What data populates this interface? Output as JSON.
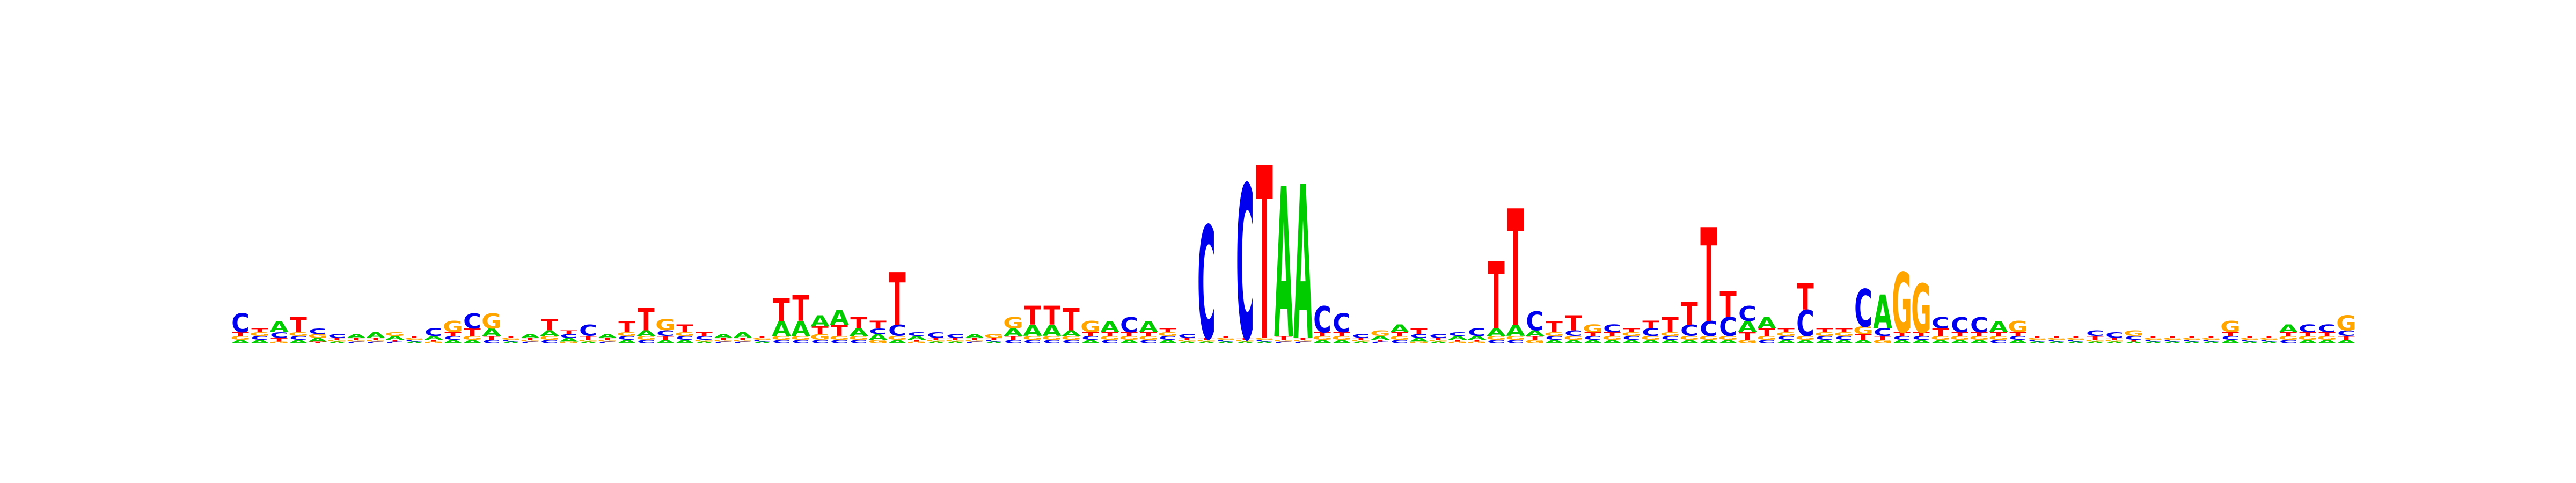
{
  "chart_data": {
    "type": "sequence-logo",
    "alphabet": [
      "A",
      "C",
      "G",
      "T"
    ],
    "colors": {
      "A": "#00cc00",
      "C": "#0000ee",
      "G": "#ffa500",
      "T": "#ff0000"
    },
    "title": "",
    "xlabel": "",
    "ylabel": "",
    "axes_visible": false,
    "grid": false,
    "ylim": [
      0,
      2
    ],
    "positions": [
      {
        "A": 0.02,
        "C": 0.1,
        "G": 0.02,
        "T": 0.02
      },
      {
        "A": 0.02,
        "C": 0.02,
        "G": 0.02,
        "T": 0.02
      },
      {
        "A": 0.06,
        "C": 0.03,
        "G": 0.01,
        "T": 0.02
      },
      {
        "A": 0.02,
        "C": 0.02,
        "G": 0.02,
        "T": 0.08
      },
      {
        "A": 0.02,
        "C": 0.03,
        "G": 0.02,
        "T": 0.01
      },
      {
        "A": 0.01,
        "C": 0.02,
        "G": 0.01,
        "T": 0.01
      },
      {
        "A": 0.02,
        "C": 0.01,
        "G": 0.01,
        "T": 0.01
      },
      {
        "A": 0.03,
        "C": 0.01,
        "G": 0.01,
        "T": 0.01
      },
      {
        "A": 0.02,
        "C": 0.01,
        "G": 0.02,
        "T": 0.01
      },
      {
        "A": 0.01,
        "C": 0.01,
        "G": 0.01,
        "T": 0.01
      },
      {
        "A": 0.02,
        "C": 0.04,
        "G": 0.01,
        "T": 0.01
      },
      {
        "A": 0.02,
        "C": 0.02,
        "G": 0.06,
        "T": 0.02
      },
      {
        "A": 0.02,
        "C": 0.08,
        "G": 0.02,
        "T": 0.04
      },
      {
        "A": 0.04,
        "C": 0.02,
        "G": 0.08,
        "T": 0.02
      },
      {
        "A": 0.01,
        "C": 0.01,
        "G": 0.01,
        "T": 0.01
      },
      {
        "A": 0.02,
        "C": 0.01,
        "G": 0.01,
        "T": 0.01
      },
      {
        "A": 0.03,
        "C": 0.02,
        "G": 0.02,
        "T": 0.06
      },
      {
        "A": 0.02,
        "C": 0.02,
        "G": 0.01,
        "T": 0.02
      },
      {
        "A": 0.01,
        "C": 0.06,
        "G": 0.01,
        "T": 0.02
      },
      {
        "A": 0.02,
        "C": 0.01,
        "G": 0.01,
        "T": 0.01
      },
      {
        "A": 0.02,
        "C": 0.02,
        "G": 0.02,
        "T": 0.06
      },
      {
        "A": 0.03,
        "C": 0.02,
        "G": 0.02,
        "T": 0.12
      },
      {
        "A": 0.02,
        "C": 0.03,
        "G": 0.06,
        "T": 0.02
      },
      {
        "A": 0.02,
        "C": 0.02,
        "G": 0.02,
        "T": 0.04
      },
      {
        "A": 0.01,
        "C": 0.02,
        "G": 0.01,
        "T": 0.02
      },
      {
        "A": 0.02,
        "C": 0.01,
        "G": 0.01,
        "T": 0.01
      },
      {
        "A": 0.03,
        "C": 0.01,
        "G": 0.01,
        "T": 0.01
      },
      {
        "A": 0.01,
        "C": 0.01,
        "G": 0.01,
        "T": 0.01
      },
      {
        "A": 0.08,
        "C": 0.02,
        "G": 0.02,
        "T": 0.12
      },
      {
        "A": 0.08,
        "C": 0.02,
        "G": 0.02,
        "T": 0.14
      },
      {
        "A": 0.06,
        "C": 0.02,
        "G": 0.03,
        "T": 0.04
      },
      {
        "A": 0.08,
        "C": 0.02,
        "G": 0.02,
        "T": 0.06
      },
      {
        "A": 0.04,
        "C": 0.02,
        "G": 0.02,
        "T": 0.06
      },
      {
        "A": 0.03,
        "C": 0.03,
        "G": 0.02,
        "T": 0.04
      },
      {
        "A": 0.02,
        "C": 0.06,
        "G": 0.02,
        "T": 0.28
      },
      {
        "A": 0.02,
        "C": 0.02,
        "G": 0.01,
        "T": 0.01
      },
      {
        "A": 0.01,
        "C": 0.03,
        "G": 0.01,
        "T": 0.01
      },
      {
        "A": 0.01,
        "C": 0.02,
        "G": 0.01,
        "T": 0.01
      },
      {
        "A": 0.02,
        "C": 0.01,
        "G": 0.01,
        "T": 0.01
      },
      {
        "A": 0.01,
        "C": 0.01,
        "G": 0.02,
        "T": 0.01
      },
      {
        "A": 0.04,
        "C": 0.02,
        "G": 0.06,
        "T": 0.02
      },
      {
        "A": 0.06,
        "C": 0.02,
        "G": 0.02,
        "T": 0.1
      },
      {
        "A": 0.06,
        "C": 0.02,
        "G": 0.02,
        "T": 0.1
      },
      {
        "A": 0.03,
        "C": 0.02,
        "G": 0.02,
        "T": 0.12
      },
      {
        "A": 0.02,
        "C": 0.02,
        "G": 0.06,
        "T": 0.02
      },
      {
        "A": 0.06,
        "C": 0.02,
        "G": 0.02,
        "T": 0.02
      },
      {
        "A": 0.02,
        "C": 0.08,
        "G": 0.02,
        "T": 0.02
      },
      {
        "A": 0.06,
        "C": 0.02,
        "G": 0.02,
        "T": 0.02
      },
      {
        "A": 0.02,
        "C": 0.02,
        "G": 0.02,
        "T": 0.02
      },
      {
        "A": 0.01,
        "C": 0.02,
        "G": 0.01,
        "T": 0.01
      },
      {
        "A": 0.01,
        "C": 0.6,
        "G": 0.01,
        "T": 0.01
      },
      {
        "A": 0.01,
        "C": 0.01,
        "G": 0.01,
        "T": 0.01
      },
      {
        "A": 0.01,
        "C": 0.82,
        "G": 0.01,
        "T": 0.01
      },
      {
        "A": 0.01,
        "C": 0.01,
        "G": 0.01,
        "T": 0.92
      },
      {
        "A": 0.8,
        "C": 0.01,
        "G": 0.01,
        "T": 0.02
      },
      {
        "A": 0.82,
        "C": 0.01,
        "G": 0.01,
        "T": 0.01
      },
      {
        "A": 0.02,
        "C": 0.14,
        "G": 0.02,
        "T": 0.02
      },
      {
        "A": 0.02,
        "C": 0.1,
        "G": 0.02,
        "T": 0.02
      },
      {
        "A": 0.01,
        "C": 0.02,
        "G": 0.01,
        "T": 0.01
      },
      {
        "A": 0.02,
        "C": 0.01,
        "G": 0.03,
        "T": 0.01
      },
      {
        "A": 0.04,
        "C": 0.02,
        "G": 0.02,
        "T": 0.02
      },
      {
        "A": 0.02,
        "C": 0.02,
        "G": 0.01,
        "T": 0.03
      },
      {
        "A": 0.01,
        "C": 0.02,
        "G": 0.01,
        "T": 0.01
      },
      {
        "A": 0.02,
        "C": 0.02,
        "G": 0.01,
        "T": 0.01
      },
      {
        "A": 0.02,
        "C": 0.04,
        "G": 0.01,
        "T": 0.01
      },
      {
        "A": 0.04,
        "C": 0.02,
        "G": 0.02,
        "T": 0.36
      },
      {
        "A": 0.06,
        "C": 0.02,
        "G": 0.02,
        "T": 0.62
      },
      {
        "A": 0.03,
        "C": 0.1,
        "G": 0.02,
        "T": 0.02
      },
      {
        "A": 0.02,
        "C": 0.02,
        "G": 0.02,
        "T": 0.06
      },
      {
        "A": 0.02,
        "C": 0.03,
        "G": 0.02,
        "T": 0.08
      },
      {
        "A": 0.02,
        "C": 0.02,
        "G": 0.04,
        "T": 0.02
      },
      {
        "A": 0.02,
        "C": 0.04,
        "G": 0.02,
        "T": 0.02
      },
      {
        "A": 0.02,
        "C": 0.02,
        "G": 0.02,
        "T": 0.02
      },
      {
        "A": 0.02,
        "C": 0.04,
        "G": 0.02,
        "T": 0.04
      },
      {
        "A": 0.02,
        "C": 0.02,
        "G": 0.02,
        "T": 0.08
      },
      {
        "A": 0.02,
        "C": 0.06,
        "G": 0.02,
        "T": 0.12
      },
      {
        "A": 0.02,
        "C": 0.08,
        "G": 0.02,
        "T": 0.5
      },
      {
        "A": 0.02,
        "C": 0.1,
        "G": 0.02,
        "T": 0.14
      },
      {
        "A": 0.06,
        "C": 0.08,
        "G": 0.02,
        "T": 0.04
      },
      {
        "A": 0.06,
        "C": 0.02,
        "G": 0.02,
        "T": 0.04
      },
      {
        "A": 0.02,
        "C": 0.02,
        "G": 0.02,
        "T": 0.02
      },
      {
        "A": 0.02,
        "C": 0.14,
        "G": 0.02,
        "T": 0.14
      },
      {
        "A": 0.02,
        "C": 0.02,
        "G": 0.02,
        "T": 0.02
      },
      {
        "A": 0.02,
        "C": 0.02,
        "G": 0.02,
        "T": 0.02
      },
      {
        "A": 0.02,
        "C": 0.2,
        "G": 0.04,
        "T": 0.03
      },
      {
        "A": 0.18,
        "C": 0.04,
        "G": 0.02,
        "T": 0.02
      },
      {
        "A": 0.02,
        "C": 0.02,
        "G": 0.32,
        "T": 0.02
      },
      {
        "A": 0.02,
        "C": 0.02,
        "G": 0.26,
        "T": 0.02
      },
      {
        "A": 0.02,
        "C": 0.06,
        "G": 0.02,
        "T": 0.04
      },
      {
        "A": 0.02,
        "C": 0.08,
        "G": 0.02,
        "T": 0.02
      },
      {
        "A": 0.02,
        "C": 0.08,
        "G": 0.02,
        "T": 0.02
      },
      {
        "A": 0.06,
        "C": 0.02,
        "G": 0.02,
        "T": 0.02
      },
      {
        "A": 0.02,
        "C": 0.02,
        "G": 0.06,
        "T": 0.02
      },
      {
        "A": 0.01,
        "C": 0.01,
        "G": 0.01,
        "T": 0.01
      },
      {
        "A": 0.01,
        "C": 0.01,
        "G": 0.01,
        "T": 0.01
      },
      {
        "A": 0.01,
        "C": 0.01,
        "G": 0.01,
        "T": 0.01
      },
      {
        "A": 0.01,
        "C": 0.03,
        "G": 0.01,
        "T": 0.02
      },
      {
        "A": 0.01,
        "C": 0.03,
        "G": 0.01,
        "T": 0.01
      },
      {
        "A": 0.01,
        "C": 0.02,
        "G": 0.03,
        "T": 0.01
      },
      {
        "A": 0.01,
        "C": 0.01,
        "G": 0.01,
        "T": 0.01
      },
      {
        "A": 0.01,
        "C": 0.01,
        "G": 0.01,
        "T": 0.01
      },
      {
        "A": 0.01,
        "C": 0.01,
        "G": 0.01,
        "T": 0.01
      },
      {
        "A": 0.01,
        "C": 0.01,
        "G": 0.01,
        "T": 0.01
      },
      {
        "A": 0.02,
        "C": 0.02,
        "G": 0.06,
        "T": 0.02
      },
      {
        "A": 0.01,
        "C": 0.01,
        "G": 0.01,
        "T": 0.01
      },
      {
        "A": 0.01,
        "C": 0.01,
        "G": 0.01,
        "T": 0.01
      },
      {
        "A": 0.04,
        "C": 0.02,
        "G": 0.02,
        "T": 0.02
      },
      {
        "A": 0.02,
        "C": 0.04,
        "G": 0.02,
        "T": 0.02
      },
      {
        "A": 0.02,
        "C": 0.04,
        "G": 0.02,
        "T": 0.02
      },
      {
        "A": 0.02,
        "C": 0.03,
        "G": 0.08,
        "T": 0.02
      }
    ]
  }
}
